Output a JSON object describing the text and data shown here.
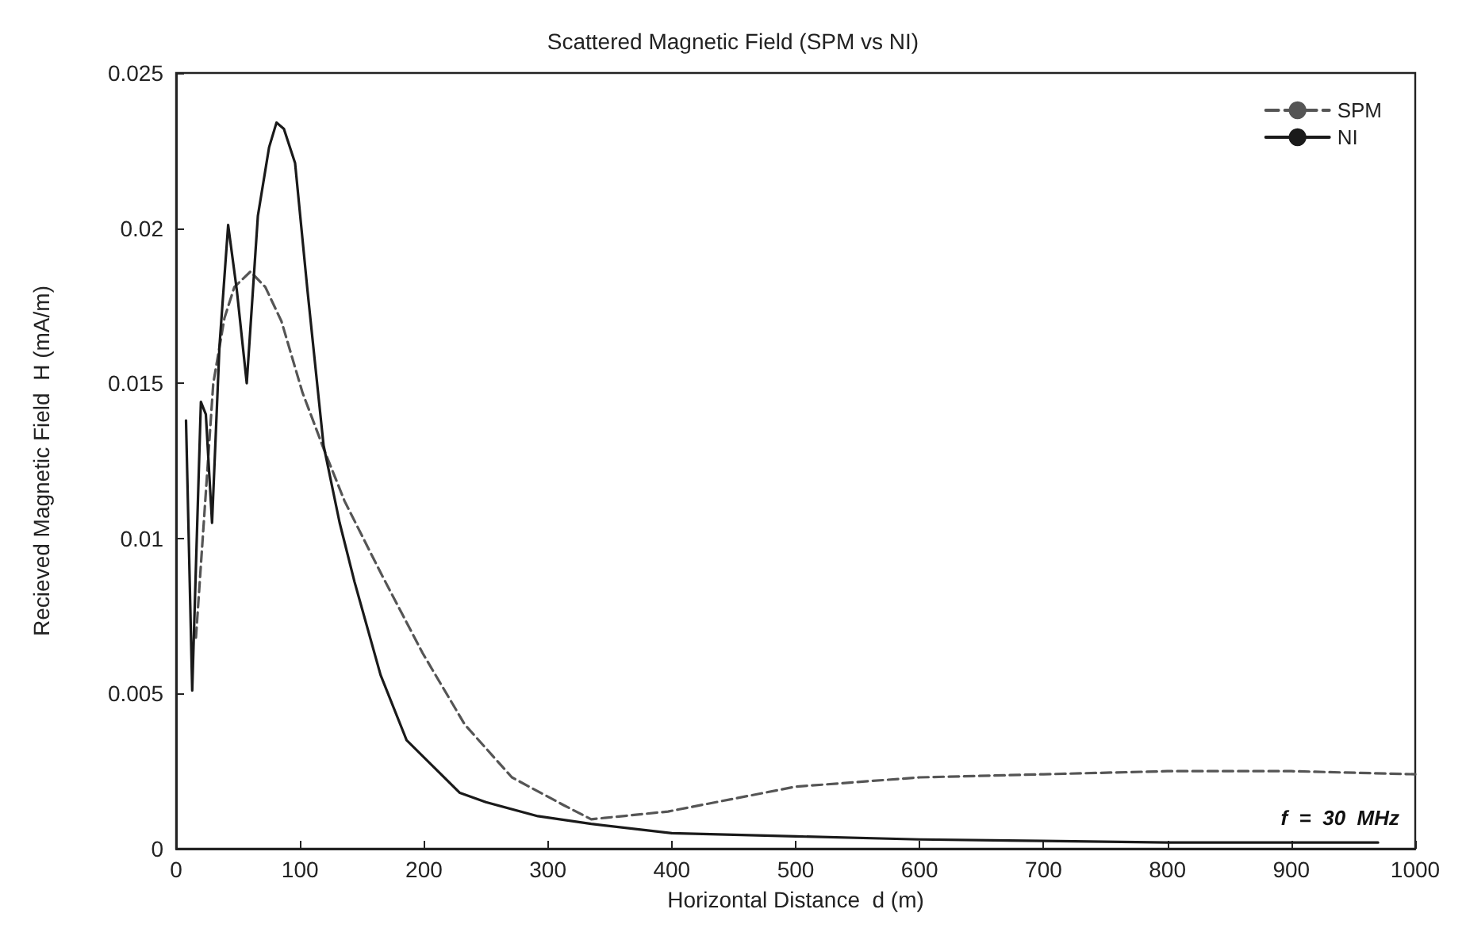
{
  "chart_data": {
    "type": "line",
    "title": "Scattered Magnetic Field (SPM vs NI)",
    "xlabel": "Horizontal Distance  d (m)",
    "ylabel": "Recieved Magnetic Field  H (mA/m)",
    "annotations": [
      "f  =  30  MHz"
    ],
    "xlim": [
      0,
      1000
    ],
    "xticks": [
      0,
      100,
      200,
      300,
      400,
      500,
      600,
      700,
      800,
      900,
      1000
    ],
    "ylim": [
      0,
      0.025
    ],
    "yticks": [
      0,
      0.005,
      0.01,
      0.015,
      0.02,
      0.025
    ],
    "grid": false,
    "legend": "top right",
    "marker": "none",
    "series": [
      {
        "name": "SPM",
        "color": "#555555",
        "line_style": "dashed",
        "x": [
          16,
          30,
          39,
          47,
          60,
          72,
          85,
          102,
          119,
          136,
          165,
          199,
          233,
          271,
          313,
          335,
          397,
          500,
          600,
          700,
          800,
          900,
          1000
        ],
        "values": [
          0.0068,
          0.015,
          0.0171,
          0.0181,
          0.0186,
          0.0181,
          0.017,
          0.0147,
          0.0129,
          0.0112,
          0.0089,
          0.0063,
          0.004,
          0.0023,
          0.0014,
          0.00095,
          0.0012,
          0.002,
          0.0023,
          0.0024,
          0.0025,
          0.0025,
          0.0024
        ]
      },
      {
        "name": "NI",
        "color": "#1a1a1a",
        "line_style": "solid",
        "x": [
          8,
          13,
          20,
          24,
          29,
          35,
          42,
          49,
          57,
          66,
          75,
          81,
          87,
          96,
          106,
          119,
          132,
          144,
          165,
          186,
          229,
          250,
          292,
          335,
          400,
          500,
          600,
          700,
          800,
          970
        ],
        "values": [
          0.0138,
          0.0051,
          0.0144,
          0.014,
          0.0105,
          0.0162,
          0.0201,
          0.018,
          0.015,
          0.0204,
          0.0226,
          0.0234,
          0.0232,
          0.0221,
          0.018,
          0.013,
          0.0105,
          0.0086,
          0.0056,
          0.0035,
          0.0018,
          0.0015,
          0.00105,
          0.0008,
          0.0005,
          0.0004,
          0.0003,
          0.00025,
          0.0002,
          0.0002
        ]
      }
    ]
  }
}
